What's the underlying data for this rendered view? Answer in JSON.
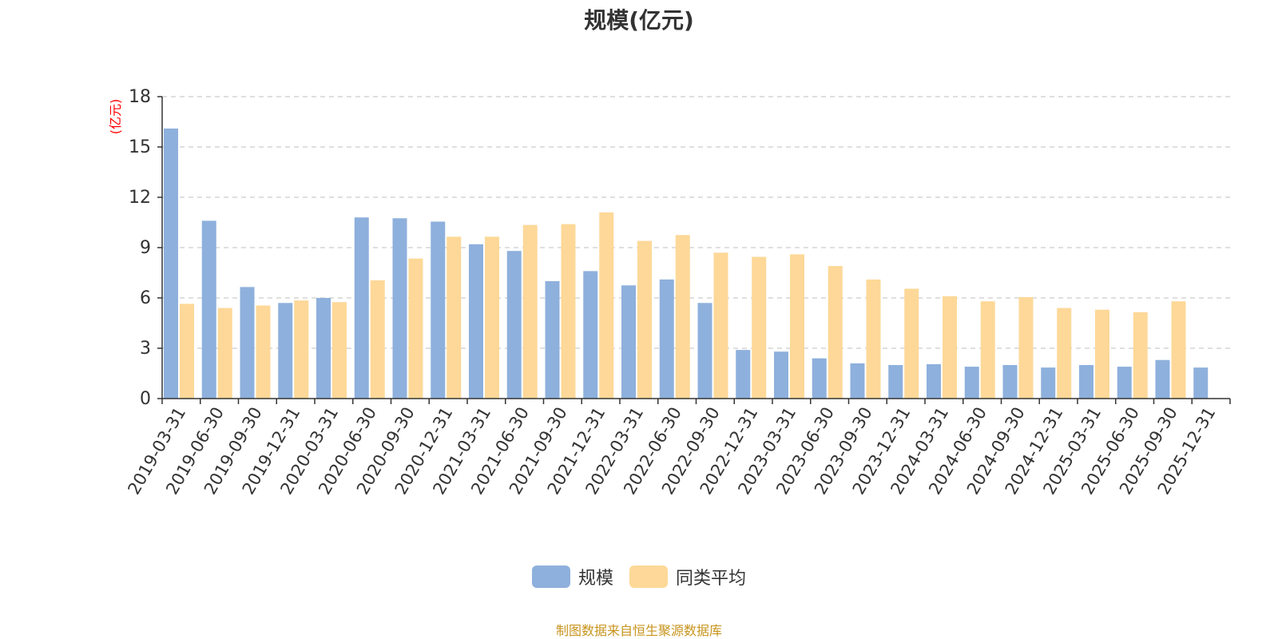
{
  "chart_data": {
    "type": "bar",
    "title": "规模(亿元)",
    "ylabel": "(亿元)",
    "xlabel": "",
    "ylim": [
      0,
      18
    ],
    "yticks": [
      0,
      3,
      6,
      9,
      12,
      15,
      18
    ],
    "grid": true,
    "legend_position": "bottom",
    "categories": [
      "2019-03-31",
      "2019-06-30",
      "2019-09-30",
      "2019-12-31",
      "2020-03-31",
      "2020-06-30",
      "2020-09-30",
      "2020-12-31",
      "2021-03-31",
      "2021-06-30",
      "2021-09-30",
      "2021-12-31",
      "2022-03-31",
      "2022-06-30",
      "2022-09-30",
      "2022-12-31",
      "2023-03-31",
      "2023-06-30",
      "2023-09-30",
      "2023-12-31",
      "2024-03-31",
      "2024-06-30",
      "2024-09-30",
      "2024-12-31",
      "2025-03-31",
      "2025-06-30",
      "2025-09-30",
      "2025-12-31"
    ],
    "series": [
      {
        "name": "规模",
        "color": "#8eb0dc",
        "values": [
          16.1,
          10.6,
          6.65,
          5.7,
          6.0,
          10.8,
          10.75,
          10.55,
          9.2,
          8.8,
          7.0,
          7.6,
          6.75,
          7.1,
          5.7,
          2.9,
          2.8,
          2.4,
          2.1,
          2.0,
          2.05,
          1.9,
          2.0,
          1.85,
          2.0,
          1.9,
          2.3,
          1.85
        ]
      },
      {
        "name": "同类平均",
        "color": "#fdd898",
        "values": [
          5.65,
          5.4,
          5.55,
          5.85,
          5.75,
          7.05,
          8.35,
          9.65,
          9.65,
          10.35,
          10.4,
          11.1,
          9.4,
          9.75,
          8.7,
          8.45,
          8.6,
          7.9,
          7.1,
          6.55,
          6.1,
          5.8,
          6.05,
          5.4,
          5.3,
          5.15,
          5.8,
          null
        ]
      }
    ],
    "colors": {
      "axis": "#333333",
      "grid": "#cccccc",
      "ylabel": "#ff0000",
      "footer": "#c8941e"
    },
    "source": "制图数据来自恒生聚源数据库"
  }
}
